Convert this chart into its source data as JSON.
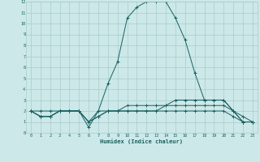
{
  "xlabel": "Humidex (Indice chaleur)",
  "xlim": [
    -0.5,
    23.5
  ],
  "ylim": [
    0,
    12
  ],
  "xticks": [
    0,
    1,
    2,
    3,
    4,
    5,
    6,
    7,
    8,
    9,
    10,
    11,
    12,
    13,
    14,
    15,
    16,
    17,
    18,
    19,
    20,
    21,
    22,
    23
  ],
  "yticks": [
    0,
    1,
    2,
    3,
    4,
    5,
    6,
    7,
    8,
    9,
    10,
    11,
    12
  ],
  "bg_color": "#cce8e8",
  "grid_color": "#aacccc",
  "line_color": "#1a6060",
  "series": [
    [
      2,
      2,
      2,
      2,
      2,
      2,
      0.5,
      2,
      4.5,
      6.5,
      10.5,
      11.5,
      12,
      12,
      12,
      10.5,
      8.5,
      5.5,
      3,
      3,
      3,
      2,
      1,
      1
    ],
    [
      2,
      1.5,
      1.5,
      2,
      2,
      2,
      1,
      1.5,
      2,
      2,
      2,
      2,
      2,
      2,
      2,
      2,
      2,
      2,
      2,
      2,
      2,
      1.5,
      1,
      1
    ],
    [
      2,
      1.5,
      1.5,
      2,
      2,
      2,
      1,
      1.5,
      2,
      2,
      2.5,
      2.5,
      2.5,
      2.5,
      2.5,
      2.5,
      2.5,
      2.5,
      2.5,
      2.5,
      2.5,
      2,
      1.5,
      1
    ],
    [
      2,
      1.5,
      1.5,
      2,
      2,
      2,
      1,
      2,
      2,
      2,
      2,
      2,
      2,
      2,
      2.5,
      3,
      3,
      3,
      3,
      3,
      3,
      2,
      1,
      1
    ]
  ]
}
